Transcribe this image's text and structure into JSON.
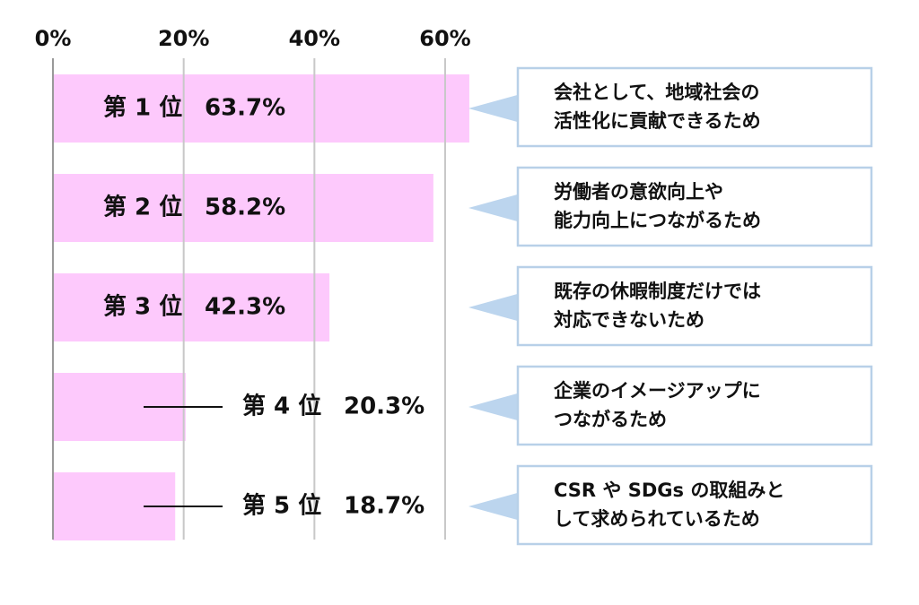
{
  "chart_data": {
    "type": "bar",
    "orientation": "horizontal",
    "categories": [
      "第 1 位",
      "第 2 位",
      "第 3 位",
      "第 4 位",
      "第 5 位"
    ],
    "values": [
      63.7,
      58.2,
      42.3,
      20.3,
      18.7
    ],
    "value_labels": [
      "63.7%",
      "58.2%",
      "42.3%",
      "20.3%",
      "18.7%"
    ],
    "color": "#fdc9fc",
    "xlim": [
      0,
      60
    ],
    "xticks": [
      {
        "value": 0,
        "label": "0%"
      },
      {
        "value": 20,
        "label": "20%"
      },
      {
        "value": 40,
        "label": "40%"
      },
      {
        "value": 60,
        "label": "60%"
      }
    ],
    "grid": true,
    "annotations": [
      [
        "会社として、地域社会の",
        "活性化に貢献できるため"
      ],
      [
        "労働者の意欲向上や",
        "能力向上につながるため"
      ],
      [
        "既存の休暇制度だけでは",
        "対応できないため"
      ],
      [
        "企業のイメージアップに",
        "つながるため"
      ],
      [
        "CSR や SDGs の取組みと",
        "して求められているため"
      ]
    ]
  }
}
